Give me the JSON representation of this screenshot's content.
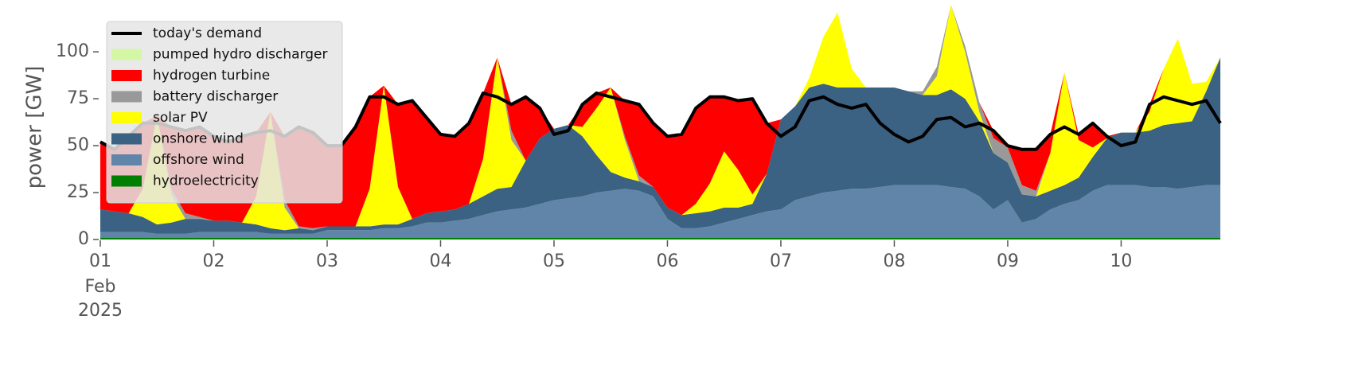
{
  "chart_data": {
    "type": "stacked-area",
    "ylabel": "power [GW]",
    "ylim": [
      0,
      120
    ],
    "yticks": [
      0,
      25,
      50,
      75,
      100
    ],
    "xlim": [
      "2025-02-01 00:00",
      "2025-02-10 23:00"
    ],
    "xticks": [
      {
        "value": "2025-02-01",
        "label": "01"
      },
      {
        "value": "2025-02-02",
        "label": "02"
      },
      {
        "value": "2025-02-03",
        "label": "03"
      },
      {
        "value": "2025-02-04",
        "label": "04"
      },
      {
        "value": "2025-02-05",
        "label": "05"
      },
      {
        "value": "2025-02-06",
        "label": "06"
      },
      {
        "value": "2025-02-07",
        "label": "07"
      },
      {
        "value": "2025-02-08",
        "label": "08"
      },
      {
        "value": "2025-02-09",
        "label": "09"
      },
      {
        "value": "2025-02-10",
        "label": "10"
      }
    ],
    "x_tick_sublabels": [
      "Feb",
      "2025"
    ],
    "legend": "upper left",
    "x": [
      "2025-02-01 00:00",
      "2025-02-01 03:00",
      "2025-02-01 06:00",
      "2025-02-01 09:00",
      "2025-02-01 12:00",
      "2025-02-01 15:00",
      "2025-02-01 18:00",
      "2025-02-01 21:00",
      "2025-02-02 00:00",
      "2025-02-02 03:00",
      "2025-02-02 06:00",
      "2025-02-02 09:00",
      "2025-02-02 12:00",
      "2025-02-02 15:00",
      "2025-02-02 18:00",
      "2025-02-02 21:00",
      "2025-02-03 00:00",
      "2025-02-03 03:00",
      "2025-02-03 06:00",
      "2025-02-03 09:00",
      "2025-02-03 12:00",
      "2025-02-03 15:00",
      "2025-02-03 18:00",
      "2025-02-03 21:00",
      "2025-02-04 00:00",
      "2025-02-04 03:00",
      "2025-02-04 06:00",
      "2025-02-04 09:00",
      "2025-02-04 12:00",
      "2025-02-04 15:00",
      "2025-02-04 18:00",
      "2025-02-04 21:00",
      "2025-02-05 00:00",
      "2025-02-05 03:00",
      "2025-02-05 06:00",
      "2025-02-05 09:00",
      "2025-02-05 12:00",
      "2025-02-05 15:00",
      "2025-02-05 18:00",
      "2025-02-05 21:00",
      "2025-02-06 00:00",
      "2025-02-06 03:00",
      "2025-02-06 06:00",
      "2025-02-06 09:00",
      "2025-02-06 12:00",
      "2025-02-06 15:00",
      "2025-02-06 18:00",
      "2025-02-06 21:00",
      "2025-02-07 00:00",
      "2025-02-07 03:00",
      "2025-02-07 06:00",
      "2025-02-07 09:00",
      "2025-02-07 12:00",
      "2025-02-07 15:00",
      "2025-02-07 18:00",
      "2025-02-07 21:00",
      "2025-02-08 00:00",
      "2025-02-08 03:00",
      "2025-02-08 06:00",
      "2025-02-08 09:00",
      "2025-02-08 12:00",
      "2025-02-08 15:00",
      "2025-02-08 18:00",
      "2025-02-08 21:00",
      "2025-02-09 00:00",
      "2025-02-09 03:00",
      "2025-02-09 06:00",
      "2025-02-09 09:00",
      "2025-02-09 12:00",
      "2025-02-09 15:00",
      "2025-02-09 18:00",
      "2025-02-09 21:00",
      "2025-02-10 00:00",
      "2025-02-10 03:00",
      "2025-02-10 06:00",
      "2025-02-10 09:00",
      "2025-02-10 12:00",
      "2025-02-10 15:00",
      "2025-02-10 18:00",
      "2025-02-10 21:00"
    ],
    "series": [
      {
        "name": "hydroelectricity",
        "color": "#008000",
        "type": "area",
        "values": [
          1,
          1,
          1,
          1,
          1,
          1,
          1,
          1,
          1,
          1,
          1,
          1,
          1,
          1,
          1,
          1,
          1,
          1,
          1,
          1,
          1,
          1,
          1,
          1,
          1,
          1,
          1,
          1,
          1,
          1,
          1,
          1,
          1,
          1,
          1,
          1,
          1,
          1,
          1,
          1,
          1,
          1,
          1,
          1,
          1,
          1,
          1,
          1,
          1,
          1,
          1,
          1,
          1,
          1,
          1,
          1,
          1,
          1,
          1,
          1,
          1,
          1,
          1,
          1,
          1,
          1,
          1,
          1,
          1,
          1,
          1,
          1,
          1,
          1,
          1,
          1,
          1,
          1,
          1,
          1
        ]
      },
      {
        "name": "offshore wind",
        "color": "#6185a8",
        "type": "area",
        "values": [
          3,
          3,
          3,
          3,
          2,
          2,
          2,
          3,
          3,
          3,
          3,
          3,
          2,
          2,
          2,
          2,
          4,
          4,
          4,
          4,
          5,
          5,
          6,
          8,
          8,
          9,
          10,
          12,
          14,
          15,
          16,
          18,
          20,
          21,
          22,
          24,
          25,
          26,
          25,
          22,
          10,
          5,
          5,
          6,
          8,
          10,
          12,
          14,
          15,
          20,
          22,
          24,
          25,
          26,
          26,
          27,
          28,
          28,
          28,
          28,
          27,
          26,
          22,
          15,
          20,
          8,
          10,
          15,
          18,
          20,
          25,
          28,
          28,
          28,
          27,
          27,
          26,
          27,
          28,
          28
        ]
      },
      {
        "name": "onshore wind",
        "color": "#3b6183",
        "type": "area",
        "values": [
          12,
          11,
          10,
          8,
          5,
          6,
          8,
          7,
          6,
          6,
          5,
          4,
          3,
          2,
          3,
          2,
          2,
          2,
          2,
          2,
          2,
          2,
          4,
          5,
          6,
          6,
          8,
          10,
          12,
          12,
          25,
          35,
          38,
          39,
          32,
          20,
          10,
          6,
          5,
          5,
          6,
          7,
          8,
          8,
          8,
          6,
          6,
          20,
          48,
          50,
          58,
          58,
          55,
          54,
          54,
          53,
          52,
          50,
          48,
          48,
          52,
          48,
          40,
          30,
          20,
          15,
          12,
          10,
          10,
          12,
          18,
          25,
          28,
          28,
          30,
          33,
          35,
          35,
          50,
          68
        ]
      },
      {
        "name": "solar PV",
        "color": "#ffff00",
        "type": "area",
        "values": [
          0,
          0,
          0,
          15,
          58,
          15,
          0,
          0,
          0,
          0,
          0,
          15,
          62,
          12,
          0,
          0,
          0,
          0,
          0,
          20,
          74,
          20,
          0,
          0,
          0,
          0,
          0,
          20,
          70,
          25,
          0,
          0,
          0,
          0,
          5,
          25,
          45,
          20,
          0,
          0,
          0,
          0,
          5,
          15,
          30,
          20,
          5,
          0,
          0,
          0,
          5,
          25,
          40,
          10,
          0,
          0,
          0,
          0,
          0,
          10,
          45,
          25,
          5,
          0,
          0,
          0,
          0,
          20,
          60,
          20,
          5,
          0,
          0,
          0,
          10,
          30,
          45,
          20,
          5,
          0
        ]
      },
      {
        "name": "battery discharger",
        "color": "#999999",
        "type": "area",
        "values": [
          0,
          0,
          0,
          0,
          0,
          3,
          3,
          1,
          0,
          0,
          0,
          0,
          0,
          4,
          1,
          1,
          0,
          0,
          0,
          0,
          0,
          0,
          0,
          0,
          0,
          0,
          0,
          0,
          0,
          5,
          0,
          0,
          0,
          0,
          0,
          0,
          0,
          2,
          3,
          0,
          0,
          0,
          0,
          0,
          0,
          0,
          0,
          0,
          0,
          0,
          0,
          0,
          0,
          0,
          0,
          0,
          0,
          0,
          2,
          5,
          0,
          3,
          5,
          8,
          8,
          5,
          3,
          0,
          0,
          0,
          0,
          0,
          0,
          0,
          0,
          0,
          0,
          0,
          0,
          0
        ]
      },
      {
        "name": "hydrogen turbine",
        "color": "#ff0000",
        "type": "area",
        "values": [
          36,
          33,
          41,
          35,
          0,
          33,
          44,
          48,
          45,
          42,
          46,
          34,
          0,
          34,
          53,
          51,
          43,
          43,
          53,
          49,
          0,
          44,
          63,
          51,
          41,
          39,
          43,
          35,
          0,
          14,
          34,
          16,
          0,
          0,
          12,
          8,
          0,
          19,
          38,
          34,
          38,
          43,
          51,
          46,
          29,
          37,
          51,
          27,
          0,
          0,
          0,
          0,
          0,
          0,
          0,
          0,
          0,
          0,
          0,
          0,
          0,
          0,
          0,
          4,
          1,
          19,
          22,
          10,
          0,
          3,
          13,
          1,
          0,
          0,
          4,
          0,
          0,
          0,
          0,
          0
        ]
      },
      {
        "name": "pumped hydro discharger",
        "color": "#d4f7a6",
        "type": "area",
        "values": [
          0,
          0,
          0,
          0,
          0,
          0,
          0,
          0,
          0,
          0,
          0,
          0,
          0,
          0,
          0,
          0,
          0,
          0,
          0,
          0,
          0,
          0,
          0,
          0,
          0,
          0,
          0,
          0,
          0,
          0,
          0,
          0,
          0,
          0,
          0,
          0,
          0,
          0,
          0,
          0,
          0,
          0,
          0,
          0,
          0,
          0,
          0,
          0,
          0,
          0,
          0,
          0,
          0,
          0,
          0,
          0,
          0,
          0,
          0,
          0,
          0,
          0,
          0,
          0,
          0,
          0,
          0,
          0,
          0,
          0,
          0,
          0,
          0,
          0,
          0,
          0,
          0,
          0,
          0,
          0
        ]
      },
      {
        "name": "today's demand",
        "color": "#000000",
        "type": "line",
        "values": [
          52,
          48,
          55,
          62,
          62,
          60,
          58,
          60,
          55,
          52,
          55,
          57,
          58,
          55,
          60,
          57,
          50,
          50,
          60,
          76,
          76,
          72,
          74,
          65,
          56,
          55,
          62,
          78,
          76,
          72,
          76,
          70,
          56,
          58,
          72,
          78,
          76,
          74,
          72,
          62,
          55,
          56,
          70,
          76,
          76,
          74,
          75,
          62,
          55,
          60,
          74,
          76,
          72,
          70,
          72,
          62,
          56,
          52,
          55,
          64,
          65,
          60,
          62,
          58,
          50,
          48,
          48,
          56,
          60,
          56,
          62,
          55,
          50,
          52,
          72,
          76,
          74,
          72,
          74,
          62
        ]
      }
    ]
  }
}
